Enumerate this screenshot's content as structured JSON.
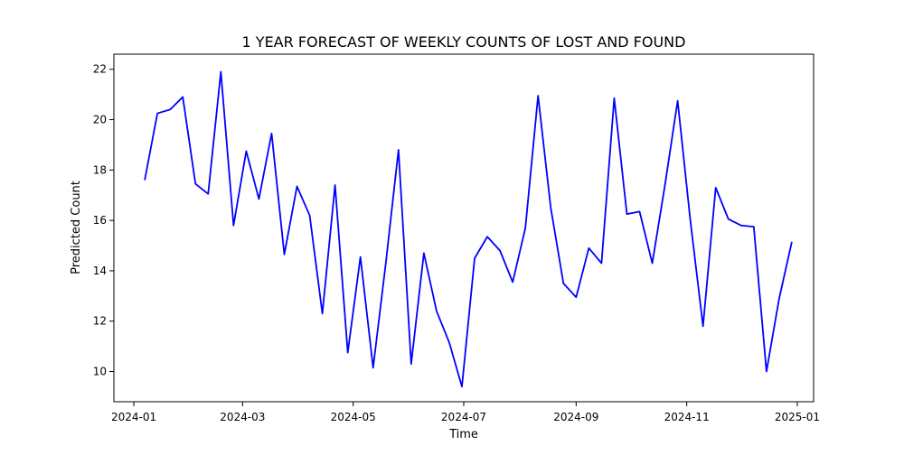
{
  "chart_data": {
    "type": "line",
    "title": "1 YEAR FORECAST OF WEEKLY COUNTS OF LOST AND FOUND",
    "xlabel": "Time",
    "ylabel": "Predicted Count",
    "grid": false,
    "line_color": "#0000ff",
    "x_ticks": [
      "2024-01",
      "2024-03",
      "2024-05",
      "2024-07",
      "2024-09",
      "2024-11",
      "2025-01"
    ],
    "y_ticks": [
      "10",
      "12",
      "14",
      "16",
      "18",
      "20",
      "22"
    ],
    "xlim": [
      "2023-12-21",
      "2025-01-10"
    ],
    "ylim": [
      8.8,
      22.6
    ],
    "series": [
      {
        "x": [
          "2024-01-07",
          "2024-01-14",
          "2024-01-21",
          "2024-01-28",
          "2024-02-04",
          "2024-02-11",
          "2024-02-18",
          "2024-02-25",
          "2024-03-03",
          "2024-03-10",
          "2024-03-17",
          "2024-03-24",
          "2024-03-31",
          "2024-04-07",
          "2024-04-14",
          "2024-04-21",
          "2024-04-28",
          "2024-05-05",
          "2024-05-12",
          "2024-05-19",
          "2024-05-26",
          "2024-06-02",
          "2024-06-09",
          "2024-06-16",
          "2024-06-23",
          "2024-06-30",
          "2024-07-07",
          "2024-07-14",
          "2024-07-21",
          "2024-07-28",
          "2024-08-04",
          "2024-08-11",
          "2024-08-18",
          "2024-08-25",
          "2024-09-01",
          "2024-09-08",
          "2024-09-15",
          "2024-09-22",
          "2024-09-29",
          "2024-10-06",
          "2024-10-13",
          "2024-10-20",
          "2024-10-27",
          "2024-11-03",
          "2024-11-10",
          "2024-11-17",
          "2024-11-24",
          "2024-12-01",
          "2024-12-08",
          "2024-12-15",
          "2024-12-22",
          "2024-12-29"
        ],
        "y": [
          17.6,
          20.25,
          20.4,
          20.9,
          17.45,
          17.05,
          21.9,
          15.8,
          18.75,
          16.85,
          19.45,
          14.65,
          17.35,
          16.2,
          12.3,
          17.4,
          10.75,
          14.55,
          10.15,
          14.3,
          18.8,
          10.3,
          14.7,
          12.4,
          11.15,
          9.4,
          14.5,
          15.35,
          14.8,
          13.55,
          15.7,
          20.95,
          16.5,
          13.5,
          12.95,
          14.9,
          14.3,
          20.85,
          16.25,
          16.35,
          14.3,
          17.4,
          20.75,
          16.0,
          11.8,
          17.3,
          16.05,
          15.8,
          15.75,
          10.0,
          12.9,
          15.15
        ]
      }
    ]
  }
}
